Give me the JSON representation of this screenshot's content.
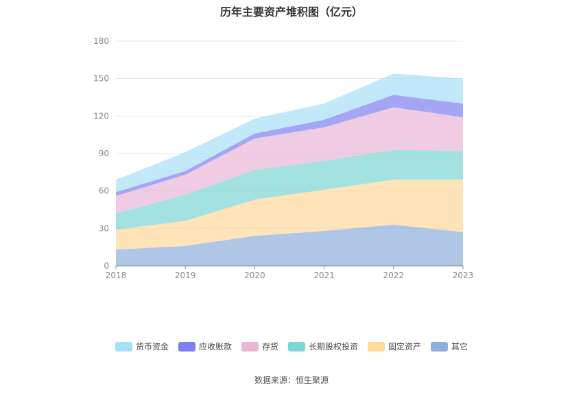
{
  "chart_data": {
    "type": "area",
    "stacked": true,
    "title": "历年主要资产堆积图（亿元）",
    "x": [
      "2018",
      "2019",
      "2020",
      "2021",
      "2022",
      "2023"
    ],
    "ylim": [
      0,
      180
    ],
    "yticks": [
      "0",
      "30",
      "60",
      "90",
      "120",
      "150",
      "180"
    ],
    "grid": true,
    "legend_position": "bottom",
    "series": [
      {
        "name": "其它",
        "color": "#8faedc",
        "values": [
          13,
          16,
          24,
          28,
          33,
          27
        ]
      },
      {
        "name": "固定资产",
        "color": "#fdd99a",
        "values": [
          16,
          20,
          29,
          33,
          36,
          42
        ]
      },
      {
        "name": "长期股权投资",
        "color": "#7dd6d6",
        "values": [
          13,
          21,
          24,
          23,
          24,
          23
        ]
      },
      {
        "name": "存货",
        "color": "#e9b6d8",
        "values": [
          14,
          16,
          25,
          27,
          34,
          27
        ]
      },
      {
        "name": "应收账款",
        "color": "#7f7ff2",
        "values": [
          3,
          3,
          4,
          6,
          10,
          11
        ]
      },
      {
        "name": "货币资金",
        "color": "#a6e0f7",
        "values": [
          10,
          15,
          12,
          13,
          17,
          20
        ]
      }
    ]
  },
  "source_text": "数据来源：恒生聚源"
}
